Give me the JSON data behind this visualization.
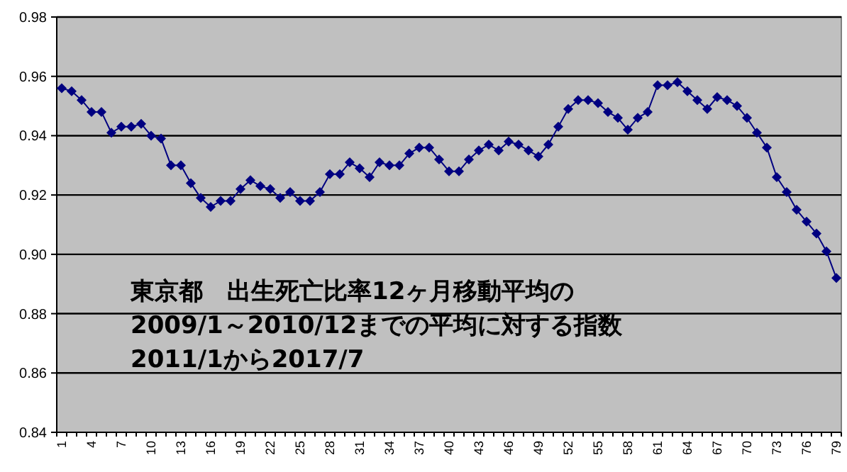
{
  "chart_data": {
    "type": "line",
    "categories": [
      "1",
      null,
      null,
      "4",
      null,
      null,
      "7",
      null,
      null,
      "10",
      null,
      null,
      "13",
      null,
      null,
      "16",
      null,
      null,
      "19",
      null,
      null,
      "22",
      null,
      null,
      "25",
      null,
      null,
      "28",
      null,
      null,
      "31",
      null,
      null,
      "34",
      null,
      null,
      "37",
      null,
      null,
      "40",
      null,
      null,
      "43",
      null,
      null,
      "46",
      null,
      null,
      "49",
      null,
      null,
      "52",
      null,
      null,
      "55",
      null,
      null,
      "58",
      null,
      null,
      "61",
      null,
      null,
      "64",
      null,
      null,
      "67",
      null,
      null,
      "70",
      null,
      null,
      "73",
      null,
      null,
      "76",
      null,
      null,
      "79"
    ],
    "series": [
      {
        "color": "#000080",
        "values": [
          0.956,
          0.955,
          0.952,
          0.948,
          0.948,
          0.941,
          0.943,
          0.943,
          0.944,
          0.94,
          0.939,
          0.93,
          0.93,
          0.924,
          0.919,
          0.916,
          0.918,
          0.918,
          0.922,
          0.925,
          0.923,
          0.922,
          0.919,
          0.921,
          0.918,
          0.918,
          0.921,
          0.927,
          0.927,
          0.931,
          0.929,
          0.926,
          0.931,
          0.93,
          0.93,
          0.934,
          0.936,
          0.936,
          0.932,
          0.928,
          0.928,
          0.932,
          0.935,
          0.937,
          0.935,
          0.938,
          0.937,
          0.935,
          0.933,
          0.937,
          0.943,
          0.949,
          0.952,
          0.952,
          0.951,
          0.948,
          0.946,
          0.942,
          0.946,
          0.948,
          0.957,
          0.957,
          0.958,
          0.955,
          0.952,
          0.949,
          0.953,
          0.952,
          0.95,
          0.946,
          0.941,
          0.936,
          0.926,
          0.921,
          0.915,
          0.911,
          0.907,
          0.901,
          0.892
        ]
      }
    ],
    "ylim": [
      0.84,
      0.98
    ],
    "yticks": [
      {
        "value": 0.84,
        "label": "0.84"
      },
      {
        "value": 0.86,
        "label": "0.86"
      },
      {
        "value": 0.88,
        "label": "0.88"
      },
      {
        "value": 0.9,
        "label": "0.90"
      },
      {
        "value": 0.92,
        "label": "0.92"
      },
      {
        "value": 0.94,
        "label": "0.94"
      },
      {
        "value": 0.96,
        "label": "0.96"
      },
      {
        "value": 0.98,
        "label": "0.98"
      }
    ],
    "grid": "y",
    "marker": "diamond",
    "line_style": "solid",
    "annotations": [
      "東京都　出生死亡比率12ヶ月移動平均の",
      "2009/1～2010/12までの平均に対する指数",
      "2011/1から2017/7"
    ]
  }
}
